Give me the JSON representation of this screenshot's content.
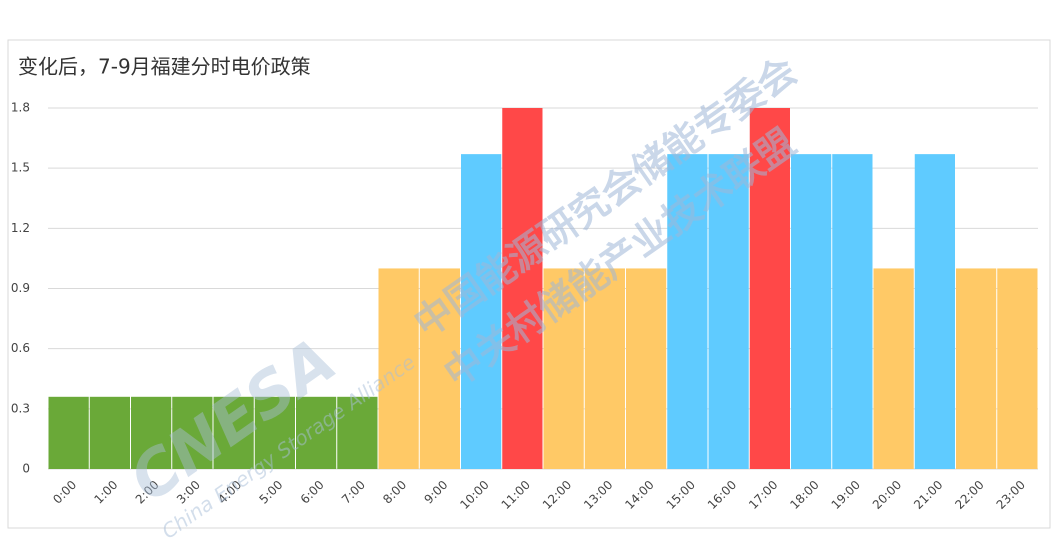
{
  "chart_data": {
    "type": "bar",
    "title": "变化后，7-9月福建分时电价政策",
    "categories": [
      "0:00",
      "1:00",
      "2:00",
      "3:00",
      "4:00",
      "5:00",
      "6:00",
      "7:00",
      "8:00",
      "9:00",
      "10:00",
      "11:00",
      "12:00",
      "13:00",
      "14:00",
      "15:00",
      "16:00",
      "17:00",
      "18:00",
      "19:00",
      "20:00",
      "21:00",
      "22:00",
      "23:00"
    ],
    "values": [
      0.36,
      0.36,
      0.36,
      0.36,
      0.36,
      0.36,
      0.36,
      0.36,
      1.0,
      1.0,
      1.57,
      1.8,
      1.0,
      1.0,
      1.0,
      1.57,
      1.57,
      1.8,
      1.57,
      1.57,
      1.0,
      1.57,
      1.0,
      1.0
    ],
    "colors": [
      "#6aa938",
      "#6aa938",
      "#6aa938",
      "#6aa938",
      "#6aa938",
      "#6aa938",
      "#6aa938",
      "#6aa938",
      "#ffc966",
      "#ffc966",
      "#5fcbff",
      "#ff4848",
      "#ffc966",
      "#ffc966",
      "#ffc966",
      "#5fcbff",
      "#5fcbff",
      "#ff4848",
      "#5fcbff",
      "#5fcbff",
      "#ffc966",
      "#5fcbff",
      "#ffc966",
      "#ffc966"
    ],
    "ylim": [
      0,
      1.8
    ],
    "yticks": [
      0,
      0.3,
      0.6,
      0.9,
      1.2,
      1.5,
      1.8
    ],
    "grid": true,
    "watermark": [
      "中国能源研究会储能专委会",
      "中关村储能产业技术联盟",
      "CNESA",
      "China Energy Storage Alliance"
    ]
  }
}
